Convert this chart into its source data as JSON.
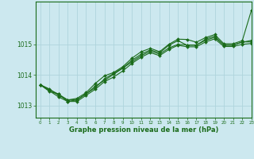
{
  "title": "Graphe pression niveau de la mer (hPa)",
  "bg_color": "#cce8ef",
  "grid_color": "#afd4dc",
  "line_color": "#1a6b1a",
  "ylim": [
    1012.6,
    1016.4
  ],
  "xlim": [
    -0.5,
    23
  ],
  "yticks": [
    1013,
    1014,
    1015
  ],
  "xticks": [
    0,
    1,
    2,
    3,
    4,
    5,
    6,
    7,
    8,
    9,
    10,
    11,
    12,
    13,
    14,
    15,
    16,
    17,
    18,
    19,
    20,
    21,
    22,
    23
  ],
  "line1": [
    1013.68,
    1013.52,
    1013.37,
    1013.18,
    1013.23,
    1013.42,
    1013.72,
    1013.97,
    1014.08,
    1014.27,
    1014.55,
    1014.76,
    1014.87,
    1014.76,
    1015.0,
    1015.17,
    1015.16,
    1015.07,
    1015.22,
    1015.32,
    1015.02,
    1015.02,
    1015.12,
    1016.12
  ],
  "line2": [
    1013.68,
    1013.46,
    1013.37,
    1013.13,
    1013.18,
    1013.38,
    1013.58,
    1013.87,
    1014.05,
    1014.23,
    1014.48,
    1014.68,
    1014.82,
    1014.72,
    1014.97,
    1015.12,
    1014.97,
    1014.97,
    1015.17,
    1015.27,
    1014.97,
    1014.97,
    1015.08,
    1015.08
  ],
  "line3": [
    1013.68,
    1013.54,
    1013.33,
    1013.18,
    1013.18,
    1013.38,
    1013.63,
    1013.82,
    1014.02,
    1014.22,
    1014.43,
    1014.63,
    1014.78,
    1014.68,
    1014.88,
    1015.0,
    1014.98,
    1014.98,
    1015.13,
    1015.23,
    1014.98,
    1014.98,
    1015.07,
    1015.13
  ],
  "line4": [
    1013.68,
    1013.48,
    1013.28,
    1013.13,
    1013.13,
    1013.33,
    1013.53,
    1013.78,
    1013.93,
    1014.13,
    1014.38,
    1014.58,
    1014.73,
    1014.63,
    1014.83,
    1014.97,
    1014.92,
    1014.92,
    1015.08,
    1015.18,
    1014.93,
    1014.93,
    1015.0,
    1015.03
  ]
}
